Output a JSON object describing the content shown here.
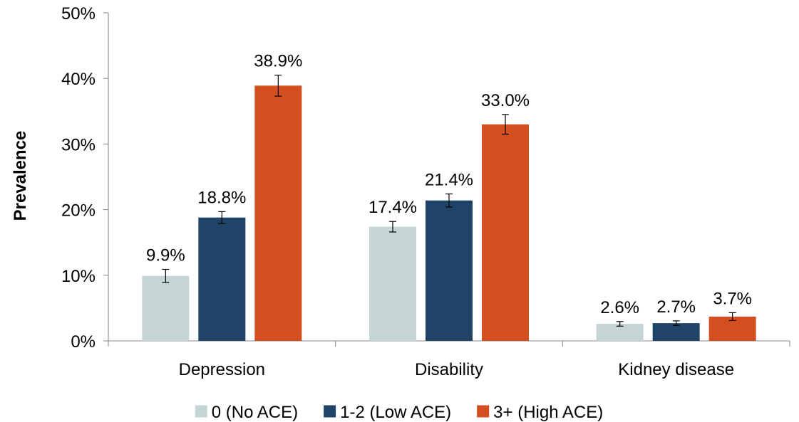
{
  "chart_data": {
    "type": "bar",
    "title": "",
    "xlabel": "",
    "ylabel": "Prevalence",
    "ylim": [
      0,
      50
    ],
    "yticks": [
      "0%",
      "10%",
      "20%",
      "30%",
      "40%",
      "50%"
    ],
    "categories": [
      "Depression",
      "Disability",
      "Kidney disease"
    ],
    "series": [
      {
        "name": "0 (No ACE)",
        "color": "#c5d5d5",
        "values": [
          9.9,
          17.4,
          2.6
        ],
        "labels": [
          "9.9%",
          "17.4%",
          "2.6%"
        ],
        "error": [
          1.0,
          0.8,
          0.35
        ]
      },
      {
        "name": "1-2 (Low ACE)",
        "color": "#1f4468",
        "values": [
          18.8,
          21.4,
          2.7
        ],
        "labels": [
          "18.8%",
          "21.4%",
          "2.7%"
        ],
        "error": [
          0.9,
          1.0,
          0.35
        ]
      },
      {
        "name": "3+ (High ACE)",
        "color": "#d44f1f",
        "values": [
          38.9,
          33.0,
          3.7
        ],
        "labels": [
          "38.9%",
          "33.0%",
          "3.7%"
        ],
        "error": [
          1.6,
          1.5,
          0.6
        ]
      }
    ],
    "legend_position": "bottom",
    "grid": false
  }
}
